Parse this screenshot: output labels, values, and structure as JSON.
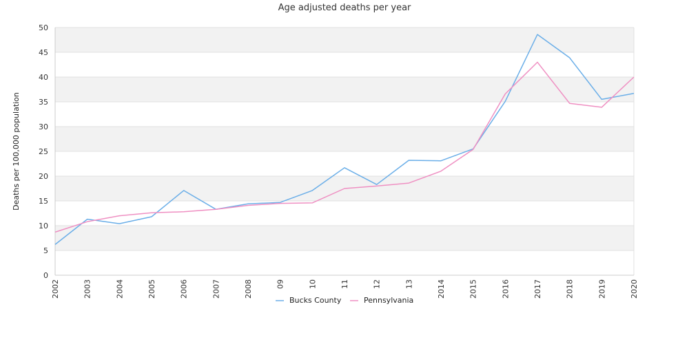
{
  "chart_data": {
    "type": "line",
    "title": "Age adjusted deaths per year",
    "xlabel": "",
    "ylabel": "Deaths per 100,000 population",
    "categories": [
      "2002",
      "2003",
      "2004",
      "2005",
      "2006",
      "2007",
      "2008",
      "09",
      "10",
      "11",
      "12",
      "13",
      "2014",
      "2015",
      "2016",
      "2017",
      "2018",
      "2019",
      "2020"
    ],
    "ylim": [
      0,
      50
    ],
    "yticks": [
      0,
      5,
      10,
      15,
      20,
      25,
      30,
      35,
      40,
      45,
      50
    ],
    "grid": "alternating horizontal bands",
    "legend_position": "bottom-center",
    "series": [
      {
        "name": "Bucks County",
        "color": "#6aaee8",
        "values": [
          6.2,
          11.3,
          10.4,
          11.8,
          17.1,
          13.3,
          14.4,
          14.7,
          17.1,
          21.7,
          18.3,
          23.2,
          23.1,
          25.5,
          35.1,
          48.6,
          43.9,
          35.5,
          36.7
        ]
      },
      {
        "name": "Pennsylvania",
        "color": "#ef8fc2",
        "values": [
          8.7,
          10.8,
          12.0,
          12.6,
          12.8,
          13.3,
          14.1,
          14.5,
          14.6,
          17.5,
          18.0,
          18.6,
          21.0,
          25.4,
          36.6,
          43.0,
          34.7,
          33.9,
          40.0
        ]
      }
    ]
  }
}
